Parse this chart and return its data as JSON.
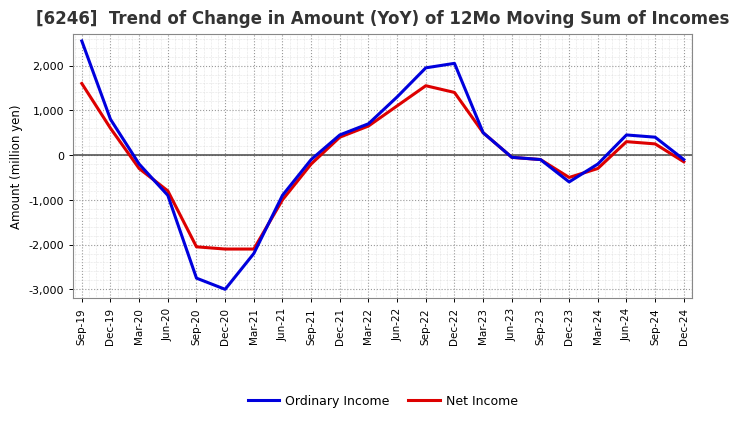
{
  "title": "[6246]  Trend of Change in Amount (YoY) of 12Mo Moving Sum of Incomes",
  "ylabel": "Amount (million yen)",
  "x_labels": [
    "Sep-19",
    "Dec-19",
    "Mar-20",
    "Jun-20",
    "Sep-20",
    "Dec-20",
    "Mar-21",
    "Jun-21",
    "Sep-21",
    "Dec-21",
    "Mar-22",
    "Jun-22",
    "Sep-22",
    "Dec-22",
    "Mar-23",
    "Jun-23",
    "Sep-23",
    "Dec-23",
    "Mar-24",
    "Jun-24",
    "Sep-24",
    "Dec-24"
  ],
  "ordinary_income": [
    2550,
    800,
    -200,
    -900,
    -2750,
    -3000,
    -2200,
    -900,
    -100,
    450,
    700,
    1300,
    1950,
    2050,
    500,
    -50,
    -100,
    -600,
    -200,
    450,
    400,
    -100
  ],
  "net_income": [
    1600,
    600,
    -300,
    -800,
    -2050,
    -2100,
    -2100,
    -1000,
    -200,
    400,
    650,
    1100,
    1550,
    1400,
    500,
    -50,
    -100,
    -500,
    -300,
    300,
    250,
    -150
  ],
  "ordinary_income_color": "#0000DD",
  "net_income_color": "#DD0000",
  "line_width": 2.2,
  "ylim": [
    -3200,
    2700
  ],
  "yticks": [
    -3000,
    -2000,
    -1000,
    0,
    1000,
    2000
  ],
  "background_color": "#ffffff",
  "plot_bg_color": "#ffffff",
  "grid_major_color": "#999999",
  "grid_minor_color": "#cccccc",
  "legend_labels": [
    "Ordinary Income",
    "Net Income"
  ],
  "zero_line_color": "#555555",
  "title_fontsize": 12,
  "title_color": "#333333"
}
